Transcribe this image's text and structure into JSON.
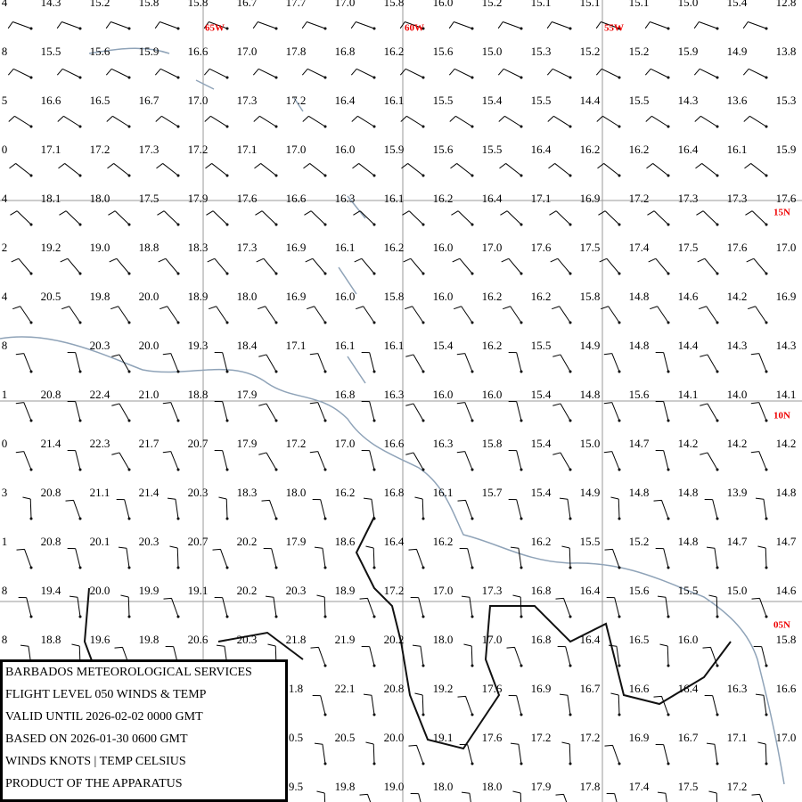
{
  "grid_labels": {
    "lon": [
      "65W",
      "60W",
      "55W"
    ],
    "lat": [
      "15N",
      "10N",
      "05N"
    ]
  },
  "temperatures": [
    [
      "4",
      "14.3",
      "15.2",
      "15.8",
      "15.8",
      "16.7",
      "17.7",
      "17.0",
      "15.8",
      "16.0",
      "15.2",
      "15.1",
      "15.1",
      "15.1",
      "15.0",
      "15.4",
      "12.8"
    ],
    [
      "8",
      "15.5",
      "15.6",
      "15.9",
      "16.6",
      "17.0",
      "17.8",
      "16.8",
      "16.2",
      "15.6",
      "15.0",
      "15.3",
      "15.2",
      "15.2",
      "15.9",
      "14.9",
      "13.8"
    ],
    [
      "5",
      "16.6",
      "16.5",
      "16.7",
      "17.0",
      "17.3",
      "17.2",
      "16.4",
      "16.1",
      "15.5",
      "15.4",
      "15.5",
      "14.4",
      "15.5",
      "14.3",
      "13.6",
      "15.3"
    ],
    [
      "0",
      "17.1",
      "17.2",
      "17.3",
      "17.2",
      "17.1",
      "17.0",
      "16.0",
      "15.9",
      "15.6",
      "15.5",
      "16.4",
      "16.2",
      "16.2",
      "16.4",
      "16.1",
      "15.9"
    ],
    [
      "4",
      "18.1",
      "18.0",
      "17.5",
      "17.9",
      "17.6",
      "16.6",
      "16.3",
      "16.1",
      "16.2",
      "16.4",
      "17.1",
      "16.9",
      "17.2",
      "17.3",
      "17.3",
      "17.6"
    ],
    [
      "2",
      "19.2",
      "19.0",
      "18.8",
      "18.3",
      "17.3",
      "16.9",
      "16.1",
      "16.2",
      "16.0",
      "17.0",
      "17.6",
      "17.5",
      "17.4",
      "17.5",
      "17.6",
      "17.0"
    ],
    [
      "4",
      "20.5",
      "19.8",
      "20.0",
      "18.9",
      "18.0",
      "16.9",
      "16.0",
      "15.8",
      "16.0",
      "16.2",
      "16.2",
      "15.8",
      "14.8",
      "14.6",
      "14.2",
      "16.9"
    ],
    [
      "8",
      null,
      "20.3",
      "20.0",
      "19.3",
      "18.4",
      "17.1",
      "16.1",
      "16.1",
      "15.4",
      "16.2",
      "15.5",
      "14.9",
      "14.8",
      "14.4",
      "14.3",
      "14.3"
    ],
    [
      "1",
      "20.8",
      "22.4",
      "21.0",
      "18.8",
      "17.9",
      null,
      "16.8",
      "16.3",
      "16.0",
      "16.0",
      "15.4",
      "14.8",
      "15.6",
      "14.1",
      "14.0",
      "14.1"
    ],
    [
      "0",
      "21.4",
      "22.3",
      "21.7",
      "20.7",
      "17.9",
      "17.2",
      "17.0",
      "16.6",
      "16.3",
      "15.8",
      "15.4",
      "15.0",
      "14.7",
      "14.2",
      "14.2",
      "14.2"
    ],
    [
      "3",
      "20.8",
      "21.1",
      "21.4",
      "20.3",
      "18.3",
      "18.0",
      "16.2",
      "16.8",
      "16.1",
      "15.7",
      "15.4",
      "14.9",
      "14.8",
      "14.8",
      "13.9",
      "14.8"
    ],
    [
      "1",
      "20.8",
      "20.1",
      "20.3",
      "20.7",
      "20.2",
      "17.9",
      "18.6",
      "16.4",
      "16.2",
      null,
      "16.2",
      "15.5",
      "15.2",
      "14.8",
      "14.7",
      "14.7"
    ],
    [
      "8",
      "19.4",
      "20.0",
      "19.9",
      "19.1",
      "20.2",
      "20.3",
      "18.9",
      "17.2",
      "17.0",
      "17.3",
      "16.8",
      "16.4",
      "15.6",
      "15.5",
      "15.0",
      "14.6"
    ],
    [
      "8",
      "18.8",
      "19.6",
      "19.8",
      "20.6",
      "20.3",
      "21.8",
      "21.9",
      "20.2",
      "18.0",
      "17.0",
      "16.8",
      "16.4",
      "16.5",
      "16.0",
      null,
      "15.8"
    ],
    [
      null,
      null,
      null,
      null,
      null,
      null,
      "1.8",
      "22.1",
      "20.8",
      "19.2",
      "17.6",
      "16.9",
      "16.7",
      "16.6",
      "16.4",
      "16.3",
      "16.6"
    ],
    [
      null,
      null,
      null,
      null,
      null,
      null,
      "0.5",
      "20.5",
      "20.0",
      "19.1",
      "17.6",
      "17.2",
      "17.2",
      "16.9",
      "16.7",
      "17.1",
      "17.0"
    ],
    [
      null,
      null,
      null,
      null,
      null,
      null,
      "9.5",
      "19.8",
      "19.0",
      "18.0",
      "18.0",
      "17.9",
      "17.8",
      "17.4",
      "17.5",
      "17.2",
      null
    ]
  ],
  "info_box": {
    "lines": [
      "BARBADOS METEOROLOGICAL SERVICES",
      "FLIGHT LEVEL 050 WINDS & TEMP",
      "VALID UNTIL 2026-02-02 0000 GMT",
      "BASED ON 2026-01-30 0600 GMT",
      "WINDS KNOTS | TEMP CELSIUS",
      "PRODUCT OF THE APPARATUS"
    ]
  }
}
